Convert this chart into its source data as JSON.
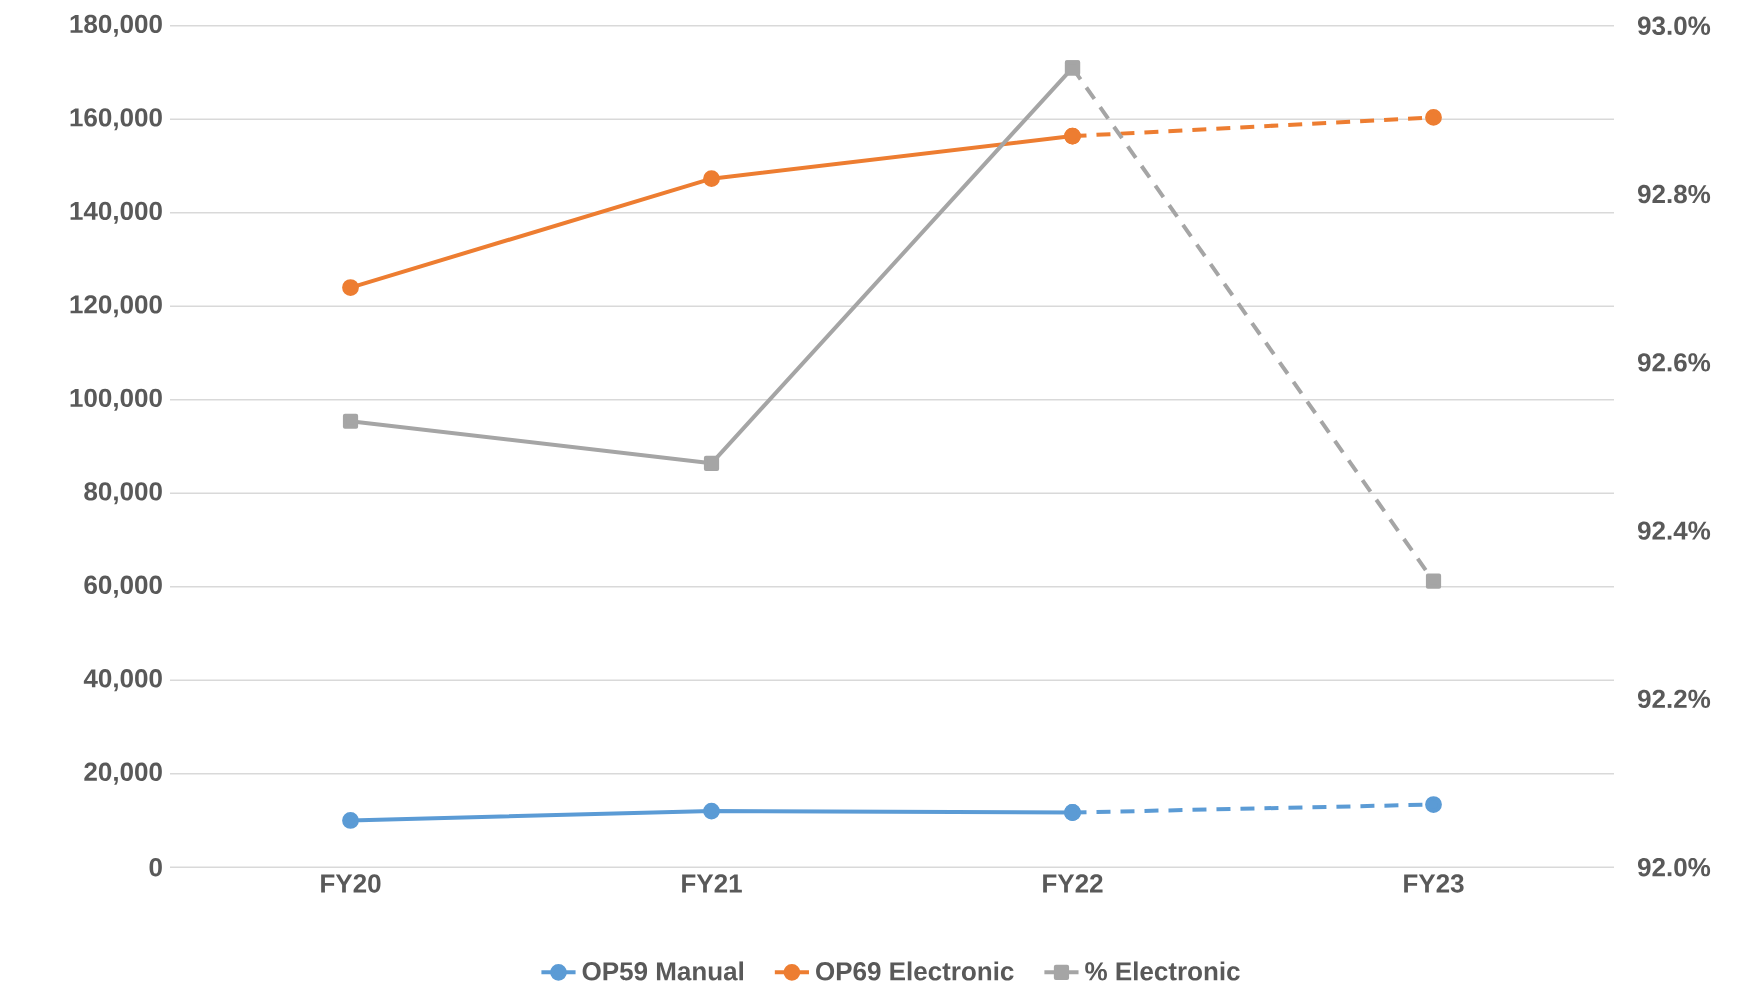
{
  "chart_data": {
    "type": "line",
    "categories": [
      "FY20",
      "FY21",
      "FY22",
      "FY23"
    ],
    "series": [
      {
        "name": "OP59 Manual",
        "color": "#5b9bd5",
        "values": [
          10000,
          12000,
          11700,
          null
        ],
        "marker": "circle",
        "line_style": "solid"
      },
      {
        "color": "#5b9bd5",
        "values": [
          null,
          null,
          11700,
          13400
        ],
        "marker": "circle",
        "line_style": "dashed"
      },
      {
        "name": "OP69 Electronic",
        "color": "#ed7d31",
        "values": [
          124000,
          147300,
          156400,
          null
        ],
        "marker": "circle",
        "line_style": "solid"
      },
      {
        "color": "#ed7d31",
        "values": [
          null,
          null,
          156400,
          160400
        ],
        "marker": "circle",
        "line_style": "dashed"
      },
      {
        "name": "% Electronic",
        "color": "#a5a5a5",
        "values": [
          92.53,
          92.48,
          92.95,
          null
        ],
        "marker": "square",
        "line_style": "solid",
        "axis": "y2"
      },
      {
        "color": "#a5a5a5",
        "values": [
          null,
          null,
          92.95,
          92.34
        ],
        "marker": "square",
        "line_style": "dashed",
        "axis": "y2"
      }
    ],
    "ylim": [
      0,
      180000
    ],
    "yticks": [
      {
        "value": 0,
        "label": "0"
      },
      {
        "value": 20000,
        "label": "20,000"
      },
      {
        "value": 40000,
        "label": "40,000"
      },
      {
        "value": 60000,
        "label": "60,000"
      },
      {
        "value": 80000,
        "label": "80,000"
      },
      {
        "value": 100000,
        "label": "100,000"
      },
      {
        "value": 120000,
        "label": "120,000"
      },
      {
        "value": 140000,
        "label": "140,000"
      },
      {
        "value": 160000,
        "label": "160,000"
      },
      {
        "value": 180000,
        "label": "180,000"
      }
    ],
    "y2lim": [
      92.0,
      93.0
    ],
    "y2ticks": [
      {
        "value": 92.0,
        "label": "92.0%"
      },
      {
        "value": 92.2,
        "label": "92.2%"
      },
      {
        "value": 92.4,
        "label": "92.4%"
      },
      {
        "value": 92.6,
        "label": "92.6%"
      },
      {
        "value": 92.8,
        "label": "92.8%"
      },
      {
        "value": 93.0,
        "label": "93.0%"
      }
    ],
    "grid": "y",
    "legend": "bottom"
  }
}
